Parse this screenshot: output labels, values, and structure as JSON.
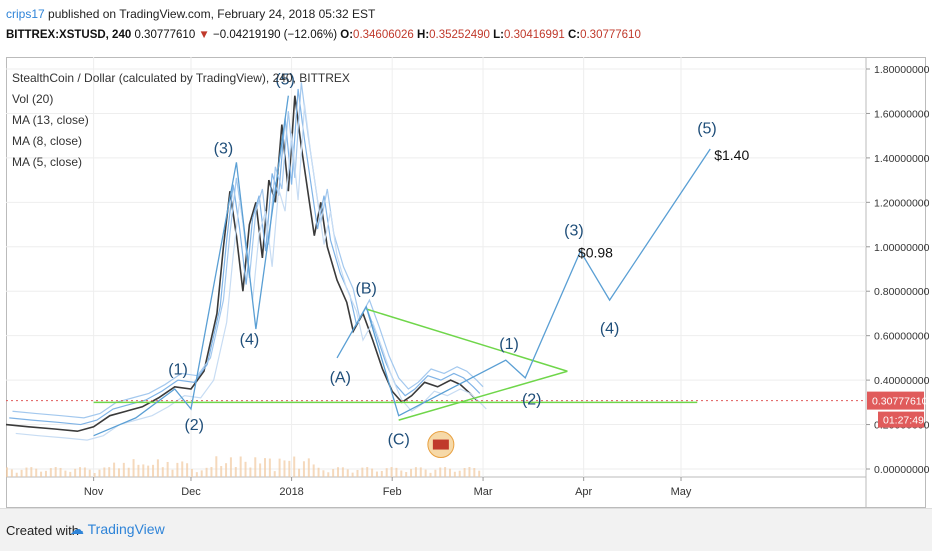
{
  "header": {
    "user": "crips17",
    "published_text": " published on TradingView.com, February 24, 2018 05:32 EST",
    "symbol": "BITTREX:XSTUSD, 240",
    "price": "0.30777610",
    "change_arrow": "▼",
    "change": "−0.04219190 (−12.06%)",
    "o_label": "O:",
    "o": "0.34606026",
    "h_label": "H:",
    "h": "0.35252490",
    "l_label": "L:",
    "l": "0.30416991",
    "c_label": "C:",
    "c": "0.30777610"
  },
  "legend": {
    "title": "StealthCoin / Dollar (calculated by TradingView), 240, BITTREX",
    "items": [
      "Vol (20)",
      "MA (13, close)",
      "MA (8, close)",
      "MA (5, close)"
    ]
  },
  "footer": {
    "created": "Created with",
    "brand": "TradingView"
  },
  "colors": {
    "accent": "#2f84d8",
    "trend": "#6fd64a",
    "wave": "#5a9fd4",
    "label": "#1f4e79",
    "price_badge": "#e05b5b"
  },
  "chart_data": {
    "type": "line",
    "title": "StealthCoin / Dollar (calculated by TradingView), 240, BITTREX",
    "ylim": [
      0,
      1.8
    ],
    "y_ticks": [
      1.8,
      1.6,
      1.4,
      1.2,
      1.0,
      0.8,
      0.6,
      0.4,
      0.2,
      0.0
    ],
    "y_tick_labels": [
      "1.80000000",
      "1.60000000",
      "1.40000000",
      "1.20000000",
      "1.00000000",
      "0.80000000",
      "0.60000000",
      "0.40000000",
      "0.20000000",
      "0.00000000"
    ],
    "x_ticks": [
      {
        "label": "Nov",
        "day": 0
      },
      {
        "label": "Dec",
        "day": 30
      },
      {
        "label": "2018",
        "day": 61
      },
      {
        "label": "Feb",
        "day": 92
      },
      {
        "label": "Mar",
        "day": 120
      },
      {
        "label": "Apr",
        "day": 151
      },
      {
        "label": "May",
        "day": 181
      }
    ],
    "x_range_days": [
      -27,
      238
    ],
    "current_price": {
      "value": 0.3077761,
      "label": "0.30777610",
      "countdown": "01:27:49"
    },
    "price_series": [
      [
        -27,
        0.2
      ],
      [
        -20,
        0.19
      ],
      [
        -12,
        0.18
      ],
      [
        -5,
        0.17
      ],
      [
        0,
        0.19
      ],
      [
        5,
        0.24
      ],
      [
        10,
        0.26
      ],
      [
        15,
        0.28
      ],
      [
        20,
        0.32
      ],
      [
        25,
        0.37
      ],
      [
        30,
        0.36
      ],
      [
        34,
        0.44
      ],
      [
        38,
        0.7
      ],
      [
        40,
        1.0
      ],
      [
        42,
        1.25
      ],
      [
        44,
        1.05
      ],
      [
        46,
        0.8
      ],
      [
        48,
        1.1
      ],
      [
        50,
        1.2
      ],
      [
        52,
        0.95
      ],
      [
        54,
        1.3
      ],
      [
        56,
        1.2
      ],
      [
        58,
        1.55
      ],
      [
        60,
        1.25
      ],
      [
        62,
        1.68
      ],
      [
        64,
        1.45
      ],
      [
        66,
        1.25
      ],
      [
        68,
        1.05
      ],
      [
        70,
        1.2
      ],
      [
        72,
        1.0
      ],
      [
        75,
        0.85
      ],
      [
        78,
        0.75
      ],
      [
        80,
        0.62
      ],
      [
        83,
        0.7
      ],
      [
        86,
        0.58
      ],
      [
        89,
        0.45
      ],
      [
        92,
        0.35
      ],
      [
        95,
        0.3
      ],
      [
        98,
        0.33
      ],
      [
        102,
        0.39
      ],
      [
        106,
        0.37
      ],
      [
        110,
        0.4
      ],
      [
        113,
        0.38
      ],
      [
        116,
        0.34
      ],
      [
        118,
        0.31
      ]
    ],
    "wave_paths": [
      [
        [
          0,
          0.15
        ],
        [
          13,
          0.23
        ],
        [
          25,
          0.36
        ],
        [
          30,
          0.27
        ],
        [
          44,
          1.38
        ],
        [
          50,
          0.63
        ],
        [
          60,
          1.68
        ]
      ],
      [
        [
          75,
          0.5
        ],
        [
          84,
          0.73
        ],
        [
          94,
          0.24
        ],
        [
          127,
          0.49
        ],
        [
          133,
          0.41
        ],
        [
          150,
          0.98
        ],
        [
          159,
          0.76
        ],
        [
          190,
          1.44
        ]
      ]
    ],
    "trendlines": [
      {
        "from": [
          0,
          0.3
        ],
        "to": [
          186,
          0.3
        ]
      },
      {
        "from": [
          84,
          0.72
        ],
        "to": [
          146,
          0.44
        ]
      },
      {
        "from": [
          94,
          0.22
        ],
        "to": [
          146,
          0.44
        ]
      }
    ],
    "annotations": [
      {
        "text": "(1)",
        "x": 26,
        "y": 0.425
      },
      {
        "text": "(2)",
        "x": 31,
        "y": 0.175
      },
      {
        "text": "(3)",
        "x": 40,
        "y": 1.42
      },
      {
        "text": "(4)",
        "x": 48,
        "y": 0.56
      },
      {
        "text": "(5)",
        "x": 59,
        "y": 1.73
      },
      {
        "text": "(A)",
        "x": 76,
        "y": 0.39
      },
      {
        "text": "(B)",
        "x": 84,
        "y": 0.79
      },
      {
        "text": "(C)",
        "x": 94,
        "y": 0.11
      },
      {
        "text": "(1)",
        "x": 128,
        "y": 0.54
      },
      {
        "text": "(2)",
        "x": 135,
        "y": 0.29
      },
      {
        "text": "(3)",
        "x": 148,
        "y": 1.05
      },
      {
        "text": "(4)",
        "x": 159,
        "y": 0.61
      },
      {
        "text": "(5)",
        "x": 189,
        "y": 1.51
      }
    ],
    "price_targets": [
      {
        "text": "$0.98",
        "x": 148,
        "y": 0.96
      },
      {
        "text": "$1.40",
        "x": 190,
        "y": 1.4
      }
    ]
  }
}
